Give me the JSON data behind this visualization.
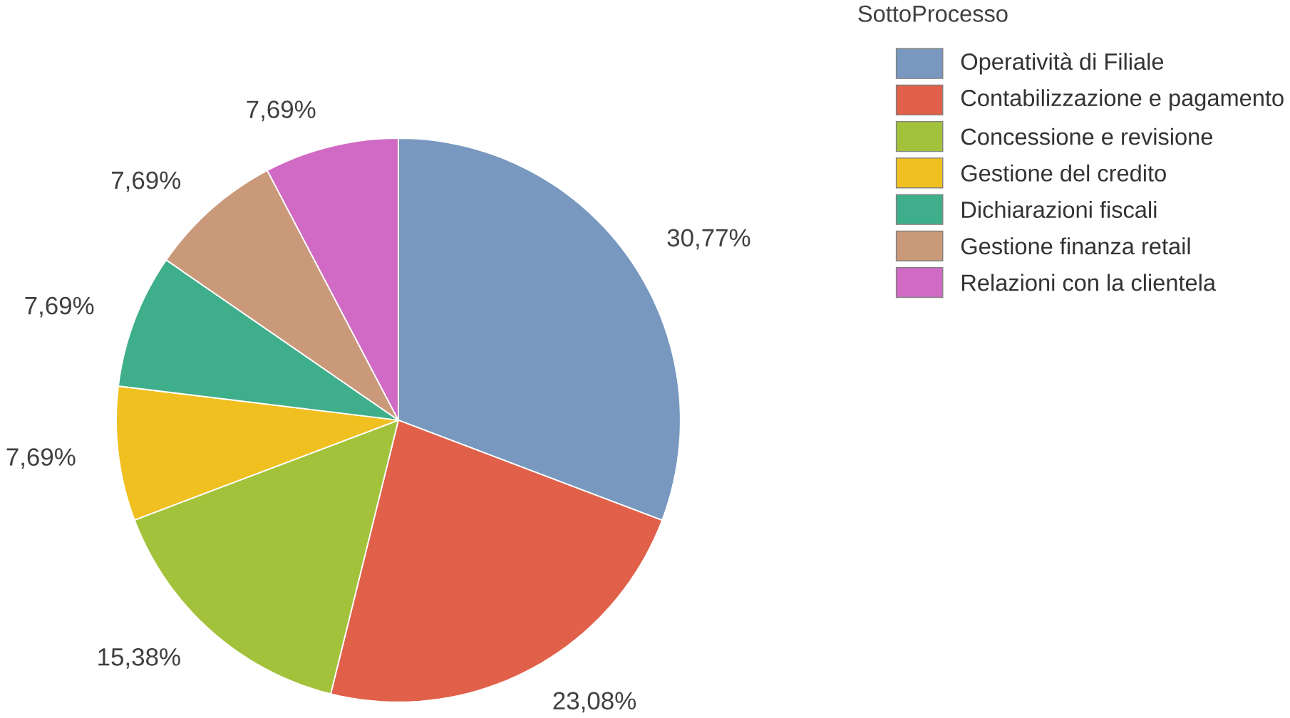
{
  "chart_data": {
    "type": "pie",
    "legend_title": "SottoProcesso",
    "legend": "right",
    "categories": [
      "Operatività di Filiale",
      "Contabilizzazione e pagamento",
      "Concessione e revisione",
      "Gestione del credito",
      "Dichiarazioni fiscali",
      "Gestione finanza retail",
      "Relazioni con la clientela"
    ],
    "values": [
      30.77,
      23.08,
      15.38,
      7.69,
      7.69,
      7.69,
      7.69
    ],
    "value_labels": [
      "30,77%",
      "23,08%",
      "15,38%",
      "7,69%",
      "7,69%",
      "7,69%",
      "7,69%"
    ],
    "colors": [
      "#7898bf",
      "#e0604a",
      "#a3c23c",
      "#f0c020",
      "#3fae8a",
      "#c9997a",
      "#d06ac4"
    ]
  }
}
